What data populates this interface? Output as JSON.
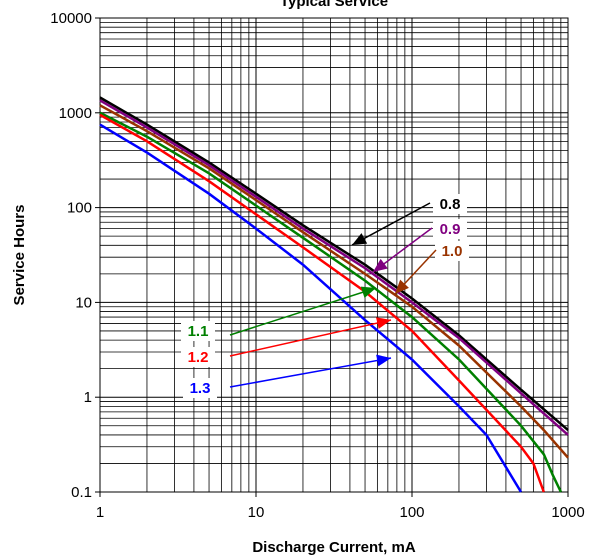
{
  "chart_data": {
    "type": "line",
    "title": "Typical Service",
    "xlabel": "Discharge Current, mA",
    "ylabel": "Service Hours",
    "log_x": true,
    "log_y": true,
    "grid": true,
    "xlim": [
      1,
      1000
    ],
    "ylim": [
      0.1,
      10000
    ],
    "xticks": [
      1,
      10,
      100,
      1000
    ],
    "yticks": [
      0.1,
      1,
      10,
      100,
      1000,
      10000
    ],
    "series": [
      {
        "name": "0.8",
        "color": "#000000",
        "x": [
          1,
          2,
          5,
          10,
          20,
          50,
          100,
          200,
          500,
          1000
        ],
        "values": [
          1450,
          750,
          300,
          140,
          65,
          25,
          11,
          4.5,
          1.2,
          0.45
        ]
      },
      {
        "name": "0.9",
        "color": "#800080",
        "x": [
          1,
          2,
          5,
          10,
          20,
          50,
          100,
          200,
          500,
          1000
        ],
        "values": [
          1350,
          700,
          280,
          130,
          60,
          23,
          10,
          4.2,
          1.1,
          0.4
        ]
      },
      {
        "name": "1.0",
        "color": "#993300",
        "x": [
          1,
          2,
          5,
          10,
          20,
          50,
          100,
          200,
          500,
          700,
          1000
        ],
        "values": [
          1200,
          640,
          260,
          120,
          55,
          20,
          9,
          3.5,
          0.8,
          0.45,
          0.23
        ]
      },
      {
        "name": "1.1",
        "color": "#008000",
        "x": [
          1,
          2,
          5,
          10,
          20,
          50,
          100,
          200,
          500,
          700,
          800,
          900
        ],
        "values": [
          1000,
          560,
          230,
          105,
          48,
          17,
          7,
          2.5,
          0.5,
          0.25,
          0.15,
          0.1
        ]
      },
      {
        "name": "1.2",
        "color": "#ff0000",
        "x": [
          1,
          2,
          5,
          10,
          20,
          50,
          100,
          200,
          500,
          600,
          700
        ],
        "values": [
          950,
          500,
          190,
          85,
          38,
          13,
          5,
          1.5,
          0.3,
          0.2,
          0.1
        ]
      },
      {
        "name": "1.3",
        "color": "#0000ff",
        "x": [
          1,
          2,
          5,
          10,
          20,
          50,
          100,
          200,
          300,
          500
        ],
        "values": [
          750,
          380,
          140,
          60,
          25,
          6.5,
          2.5,
          0.8,
          0.4,
          0.1
        ]
      }
    ]
  }
}
